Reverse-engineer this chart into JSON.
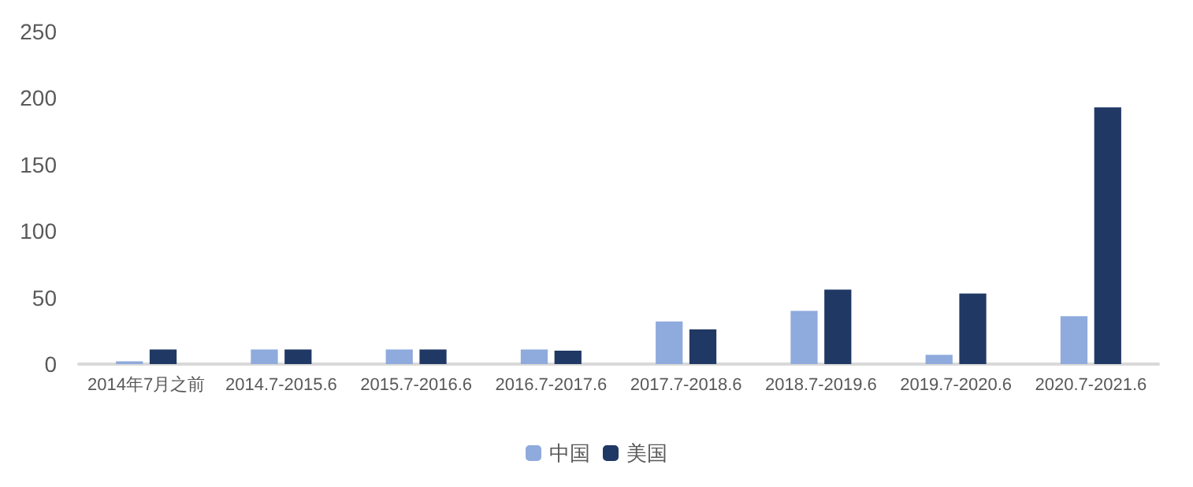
{
  "chart_data": {
    "type": "bar",
    "categories": [
      "2014年7月之前",
      "2014.7-2015.6",
      "2015.7-2016.6",
      "2016.7-2017.6",
      "2017.7-2018.6",
      "2018.7-2019.6",
      "2019.7-2020.6",
      "2020.7-2021.6"
    ],
    "series": [
      {
        "name": "中国",
        "color": "#8faadc",
        "values": [
          2,
          11,
          11,
          11,
          32,
          40,
          7,
          36
        ]
      },
      {
        "name": "美国",
        "color": "#203864",
        "values": [
          11,
          11,
          11,
          10,
          26,
          56,
          53,
          193
        ]
      }
    ],
    "ylim": [
      0,
      250
    ],
    "yticks": [
      0,
      50,
      100,
      150,
      200,
      250
    ],
    "grid": false,
    "legend": "bottom"
  }
}
